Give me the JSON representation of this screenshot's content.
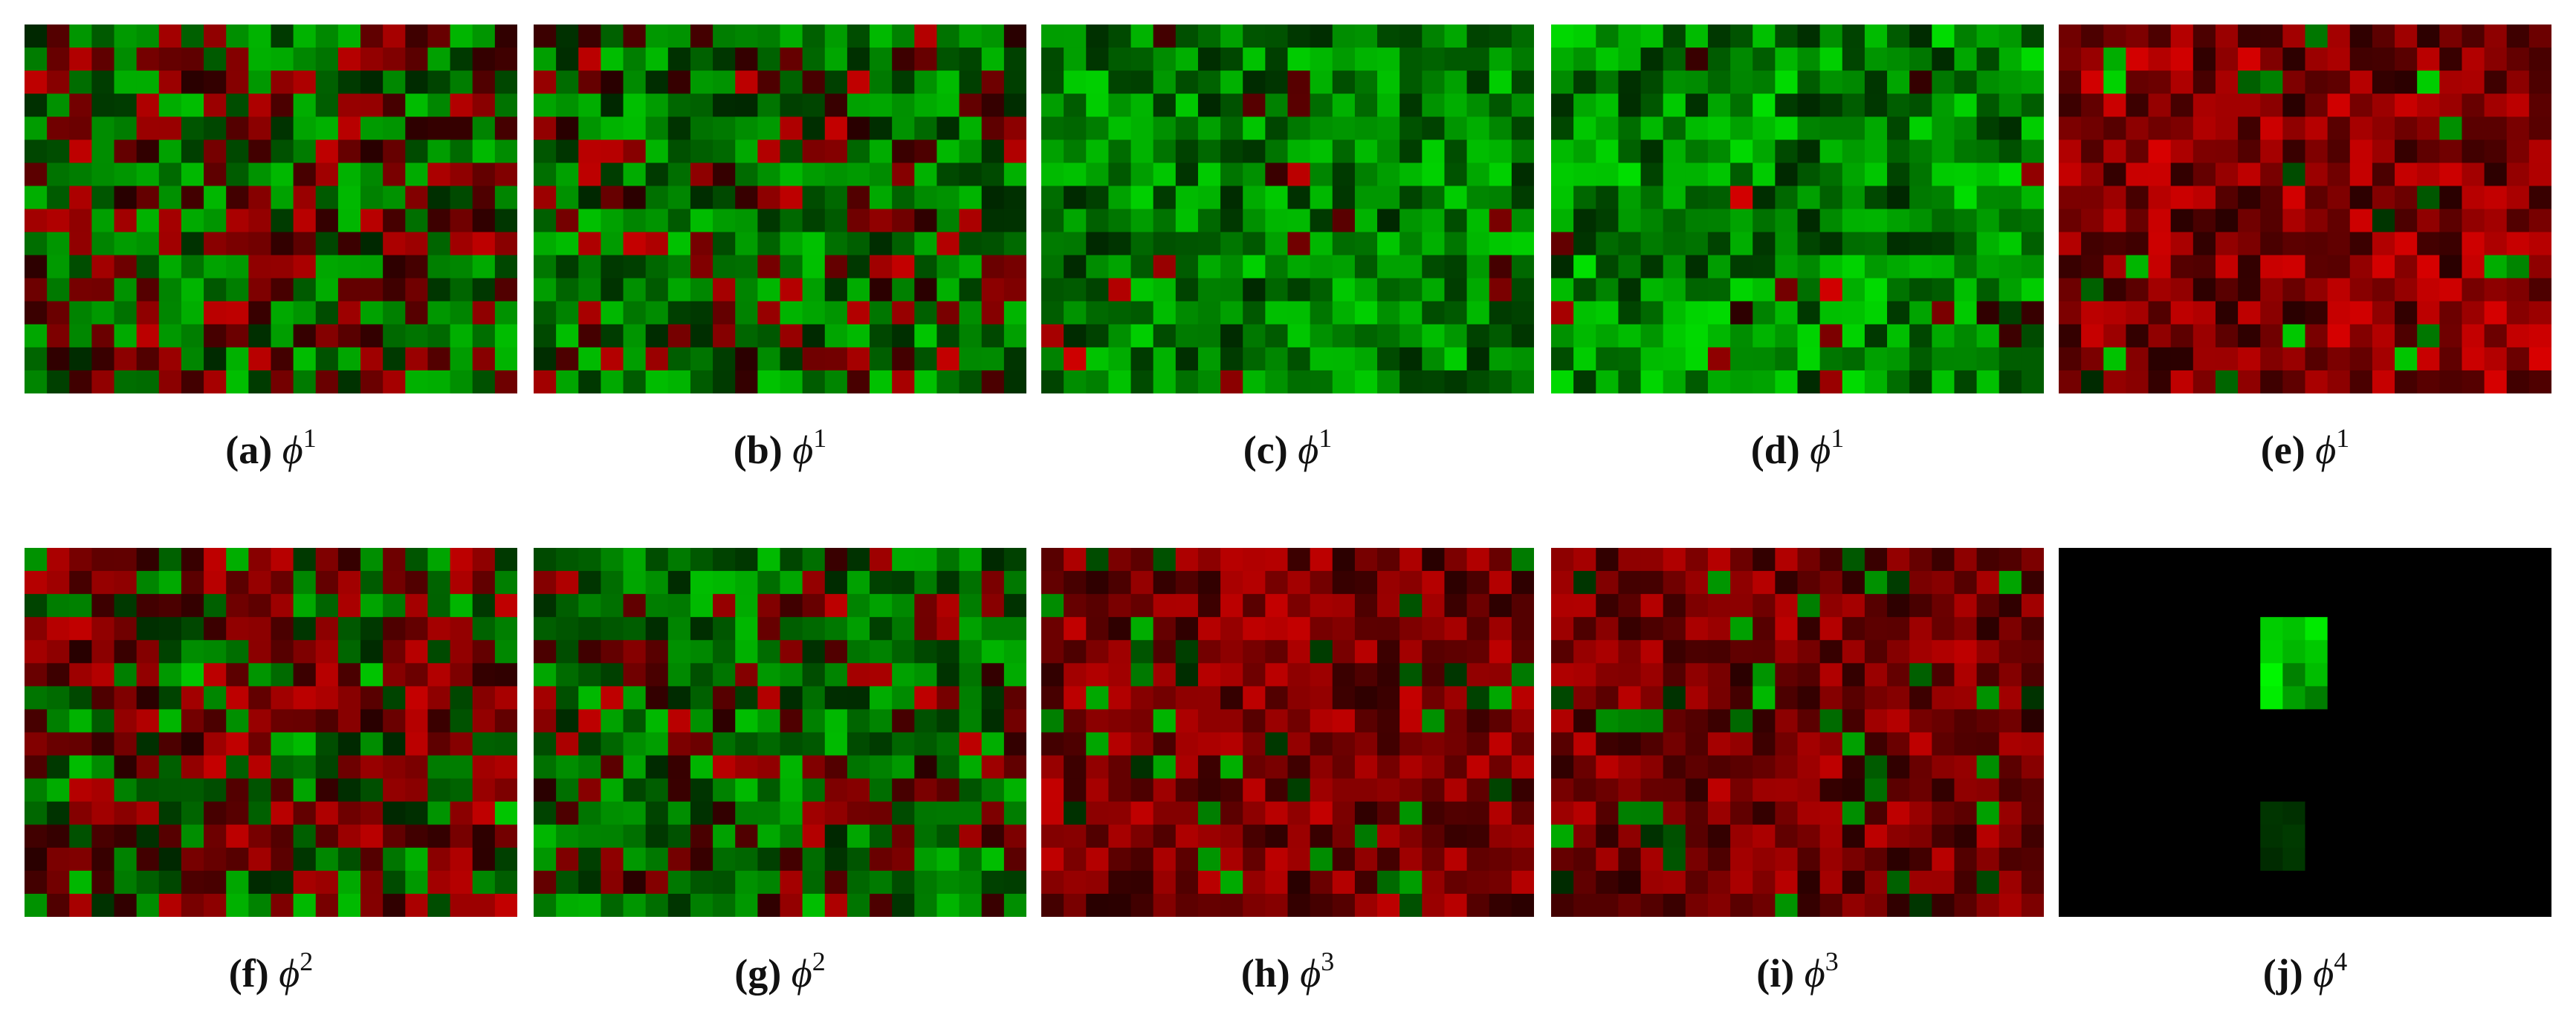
{
  "panels": [
    {
      "label": "(a)",
      "symbol": "ϕ",
      "sup": "1"
    },
    {
      "label": "(b)",
      "symbol": "ϕ",
      "sup": "1"
    },
    {
      "label": "(c)",
      "symbol": "ϕ",
      "sup": "1"
    },
    {
      "label": "(d)",
      "symbol": "ϕ",
      "sup": "1"
    },
    {
      "label": "(e)",
      "symbol": "ϕ",
      "sup": "1"
    },
    {
      "label": "(f)",
      "symbol": "ϕ",
      "sup": "2"
    },
    {
      "label": "(g)",
      "symbol": "ϕ",
      "sup": "2"
    },
    {
      "label": "(h)",
      "symbol": "ϕ",
      "sup": "3"
    },
    {
      "label": "(i)",
      "symbol": "ϕ",
      "sup": "3"
    },
    {
      "label": "(j)",
      "symbol": "ϕ",
      "sup": "4"
    }
  ]
}
